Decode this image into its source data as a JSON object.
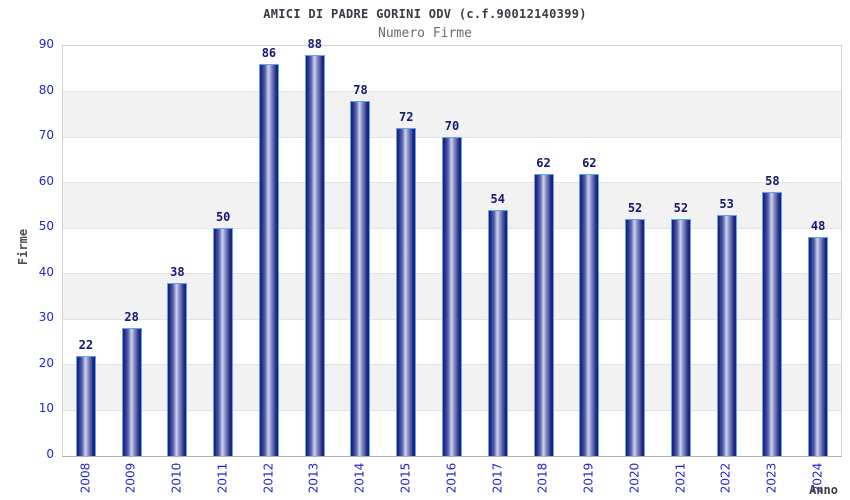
{
  "chart_data": {
    "type": "bar",
    "title": "AMICI DI PADRE GORINI ODV (c.f.90012140399)",
    "subtitle": "Numero Firme",
    "xlabel": "Anno",
    "ylabel": "Firme",
    "categories": [
      "2008",
      "2009",
      "2010",
      "2011",
      "2012",
      "2013",
      "2014",
      "2015",
      "2016",
      "2017",
      "2018",
      "2019",
      "2020",
      "2021",
      "2022",
      "2023",
      "2024"
    ],
    "values": [
      22,
      28,
      38,
      50,
      86,
      88,
      78,
      72,
      70,
      54,
      62,
      62,
      52,
      52,
      53,
      58,
      48
    ],
    "ylim": [
      0,
      90
    ],
    "yticks": [
      0,
      10,
      20,
      30,
      40,
      50,
      60,
      70,
      80,
      90
    ],
    "grid": "alternating white/gray horizontal bands every 10 units, gridlines at each tick",
    "legend": "none",
    "colors": {
      "bar_edge": "#171C76",
      "bar_center": "#CED3EE",
      "bar_outline": "#5AA7F0",
      "axis_tick_label": "#2424CC",
      "value_label": "#16166E",
      "title": "#3A3A44",
      "subtitle": "#6B6B6B",
      "band_gray": "#F2F2F2",
      "plot_border": "#D2D2D2"
    }
  }
}
